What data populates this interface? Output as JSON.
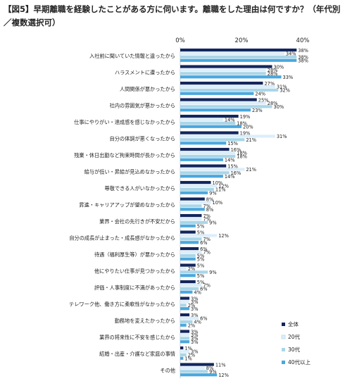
{
  "title": "【図5】早期離職を経験したことがある方に伺います。離職をした理由は何ですか？（年代別／複数選択可）",
  "chart_data": {
    "type": "bar",
    "orientation": "horizontal",
    "title": "【図5】早期離職を経験したことがある方に伺います。離職をした理由は何ですか？（年代別／複数選択可）",
    "xlim": [
      0,
      40
    ],
    "x_ticks": [
      "0%",
      "20%",
      "40%"
    ],
    "value_suffix": "%",
    "grid": false,
    "legend_position": "bottom-right",
    "categories": [
      "入社前に聞いていた情報と違ったから",
      "ハラスメントに遭ったから",
      "人間関係が悪かったから",
      "社内の雰囲気が悪かったから",
      "仕事にやりがい・達成感を感じなかったから",
      "自分の体調が悪くなったから",
      "残業・休日出勤など拘束時間が長かったから",
      "給与が低い・昇給が見込めなかったから",
      "尊敬できる人がいなかったから",
      "昇進・キャリアアップが望めなかったから",
      "業界・会社の先行きが不安だから",
      "自分の成長が止まった・成長感がなかったから",
      "待遇（福利厚生等）が悪かったから",
      "他にやりたい仕事が見つかったから",
      "評価・人事制度に不満があったから",
      "テレワーク他、働き方に柔軟性がなかったから",
      "勤務地を変えたかったから",
      "業界の将来性に不安を感じたから",
      "結婚・出産・介護など家庭の事情",
      "その他"
    ],
    "series": [
      {
        "name": "全体",
        "color": "#12265c",
        "values": [
          38,
          30,
          27,
          25,
          19,
          19,
          16,
          15,
          10,
          8,
          7,
          5,
          6,
          5,
          5,
          3,
          3,
          3,
          1,
          11
        ]
      },
      {
        "name": "20代",
        "color": "#ddeefa",
        "values": [
          34,
          28,
          31,
          28,
          14,
          31,
          18,
          21,
          12,
          10,
          7,
          12,
          7,
          2,
          7,
          3,
          6,
          3,
          3,
          8
        ]
      },
      {
        "name": "30代",
        "color": "#a9d6e8",
        "values": [
          38,
          28,
          32,
          30,
          18,
          21,
          18,
          16,
          11,
          7,
          9,
          7,
          5,
          9,
          6,
          2,
          4,
          3,
          2,
          9
        ]
      },
      {
        "name": "40代以上",
        "color": "#4aa7dd",
        "values": [
          38,
          33,
          24,
          23,
          20,
          15,
          14,
          14,
          9,
          8,
          5,
          6,
          5,
          5,
          4,
          3,
          2,
          3,
          1,
          12
        ]
      }
    ]
  }
}
